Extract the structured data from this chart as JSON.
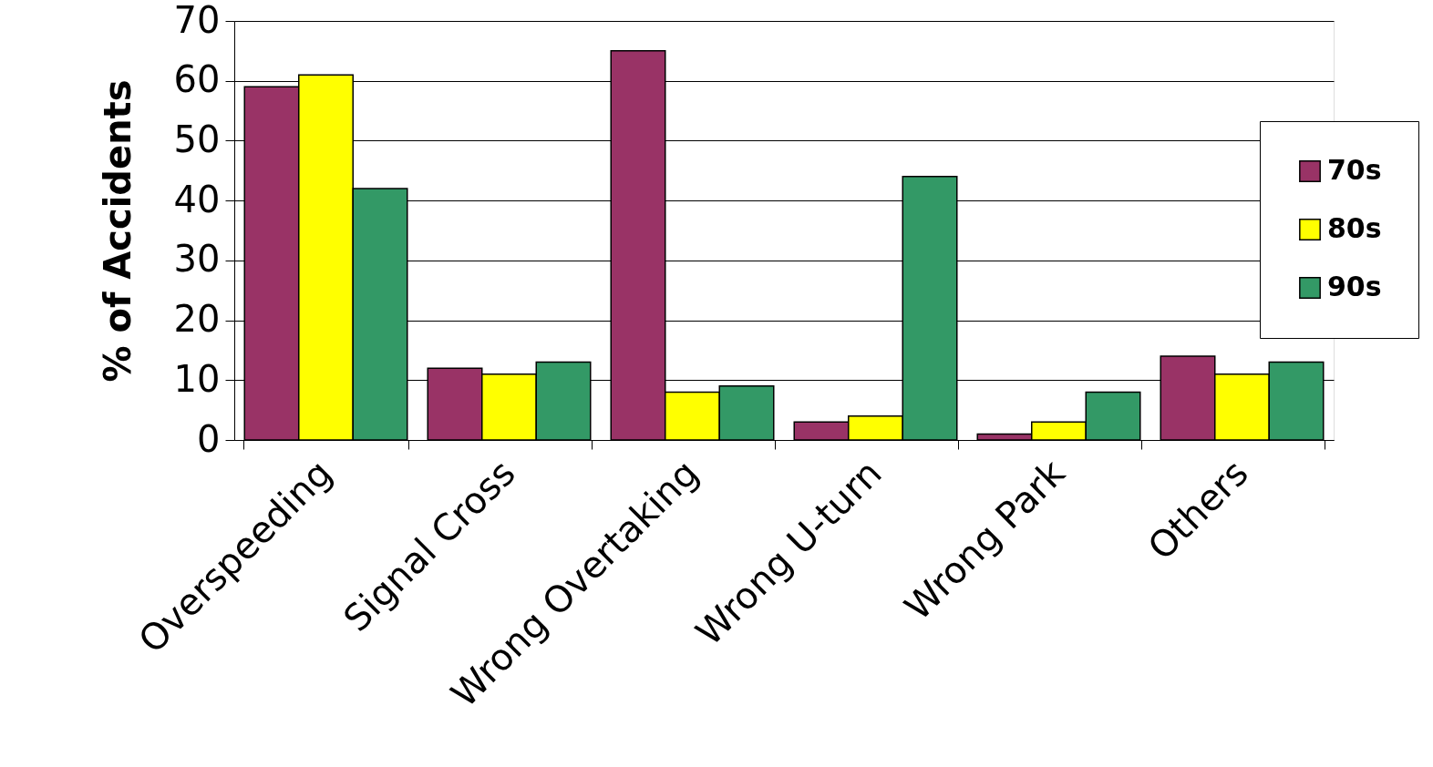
{
  "chart_data": {
    "type": "bar",
    "ylabel": "% of Accidents",
    "categories": [
      "Overspeeding",
      "Signal Cross",
      "Wrong Overtaking",
      "Wrong U-turn",
      "Wrong Park",
      "Others"
    ],
    "series": [
      {
        "name": "70s",
        "color": "#993366",
        "values": [
          59,
          12,
          65,
          3,
          1,
          14
        ]
      },
      {
        "name": "80s",
        "color": "#ffff00",
        "values": [
          61,
          11,
          8,
          4,
          3,
          11
        ]
      },
      {
        "name": "90s",
        "color": "#339966",
        "values": [
          42,
          13,
          9,
          44,
          8,
          13
        ]
      }
    ],
    "ylim": [
      0,
      70
    ],
    "yticks": [
      0,
      10,
      20,
      30,
      40,
      50,
      60,
      70
    ],
    "grid": "y",
    "legend": "right"
  }
}
